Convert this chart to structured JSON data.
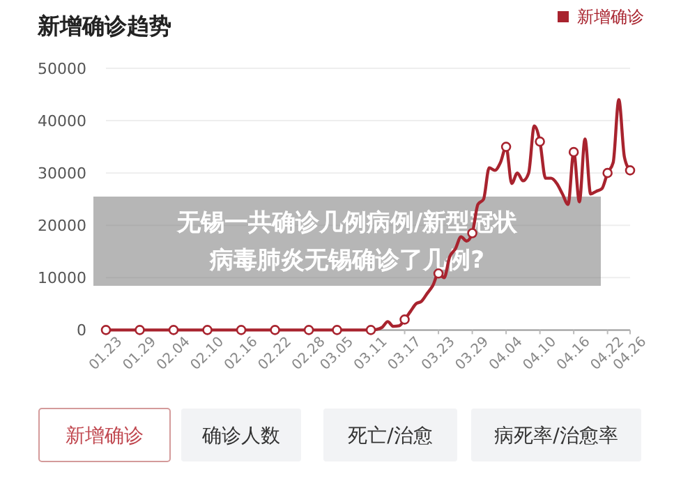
{
  "chart_data": {
    "type": "line",
    "title": "新增确诊趋势",
    "annotations": [
      "无锡一共确诊几例病例/新型冠状病毒肺炎无锡确诊了几例?",
      "新增确诊",
      "确诊人数",
      "死亡/治愈",
      "病死率/治愈率"
    ],
    "series": [
      {
        "name": "新增确诊",
        "color": "#a8232e",
        "x": [
          "--01-23",
          "--01-29",
          "--02-04",
          "--02-10",
          "--02-16",
          "--02-22",
          "--02-28",
          "--03-05",
          "--03-11",
          "--03-12",
          "--03-13",
          "--03-14",
          "--03-15",
          "--03-16",
          "--03-17",
          "--03-18",
          "--03-19",
          "--03-20",
          "--03-21",
          "--03-22",
          "--03-23",
          "--03-24",
          "--03-25",
          "--03-26",
          "--03-27",
          "--03-28",
          "--03-29",
          "--03-30",
          "--03-31",
          "--04-01",
          "--04-02",
          "--04-03",
          "--04-04",
          "--04-05",
          "--04-06",
          "--04-07",
          "--04-08",
          "--04-09",
          "--04-10",
          "--04-11",
          "--04-12",
          "--04-13",
          "--04-14",
          "--04-15",
          "--04-16",
          "--04-17",
          "--04-18",
          "--04-19",
          "--04-20",
          "--04-21",
          "--04-22",
          "--04-23",
          "--04-24",
          "--04-25",
          "--04-26"
        ],
        "values": [
          0,
          0,
          0,
          0,
          0,
          0,
          0,
          0,
          0,
          100,
          500,
          1600,
          700,
          800,
          2000,
          3500,
          5000,
          5500,
          7000,
          8500,
          10800,
          10000,
          14000,
          15500,
          17800,
          17000,
          18500,
          24000,
          25000,
          31000,
          30500,
          32000,
          35000,
          28000,
          30000,
          28500,
          30000,
          39000,
          36000,
          29000,
          29000,
          28000,
          26000,
          24000,
          34000,
          24500,
          36500,
          26000,
          26500,
          27000,
          30000,
          32000,
          44000,
          33000,
          30500
        ]
      },
      {
        "type": "scatter",
        "color": "#ffffff",
        "marker": "circle",
        "x": [
          "--01-23",
          "--01-29",
          "--02-04",
          "--02-10",
          "--02-16",
          "--02-22",
          "--02-28",
          "--03-05",
          "--03-11",
          "--03-17",
          "--03-23",
          "--03-29",
          "--04-04",
          "--04-10",
          "--04-16",
          "--04-22",
          "--04-26"
        ],
        "values": [
          0,
          0,
          0,
          0,
          0,
          0,
          0,
          0,
          0,
          2000,
          10800,
          18500,
          35000,
          36000,
          34000,
          30000,
          30500
        ]
      }
    ],
    "xlim": [
      "--01-23",
      "--04-26"
    ],
    "xticks": [
      {
        "value": "--01-23",
        "label": "01.23"
      },
      {
        "value": "--01-29",
        "label": "01.29"
      },
      {
        "value": "--02-04",
        "label": "02.04"
      },
      {
        "value": "--02-10",
        "label": "02.10"
      },
      {
        "value": "--02-16",
        "label": "02.16"
      },
      {
        "value": "--02-22",
        "label": "02.22"
      },
      {
        "value": "--02-28",
        "label": "02.28"
      },
      {
        "value": "--03-05",
        "label": "03.05"
      },
      {
        "value": "--03-11",
        "label": "03.11"
      },
      {
        "value": "--03-17",
        "label": "03.17"
      },
      {
        "value": "--03-23",
        "label": "03.23"
      },
      {
        "value": "--03-29",
        "label": "03.29"
      },
      {
        "value": "--04-04",
        "label": "04.04"
      },
      {
        "value": "--04-10",
        "label": "04.10"
      },
      {
        "value": "--04-16",
        "label": "04.16"
      },
      {
        "value": "--04-22",
        "label": "04.22"
      },
      {
        "value": "--04-26",
        "label": "04.26"
      }
    ],
    "ylim": [
      0,
      50000
    ],
    "yticks": [
      0,
      10000,
      20000,
      30000,
      40000,
      50000
    ],
    "grid": "y",
    "legend": "top right",
    "line_style": "solid"
  }
}
